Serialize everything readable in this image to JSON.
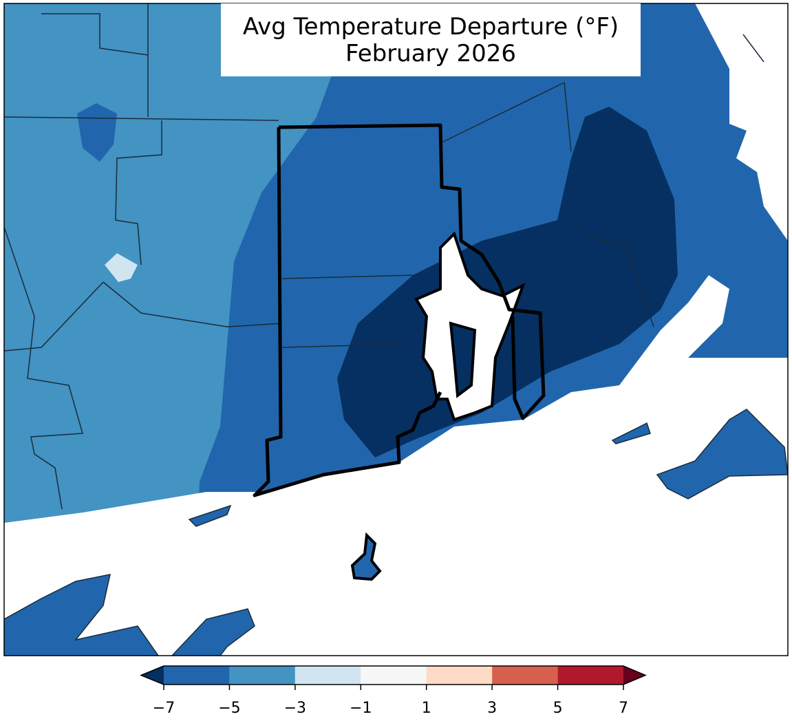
{
  "map": {
    "title": [
      "Avg Temperature Departure (°F)",
      "February 2026"
    ],
    "colorbar": {
      "ticks": [
        {
          "value": -7,
          "label": "−7"
        },
        {
          "value": -5,
          "label": "−5"
        },
        {
          "value": -3,
          "label": "−3"
        },
        {
          "value": -1,
          "label": "−1"
        },
        1,
        3,
        5,
        7
      ],
      "colors": [
        "#2166ac",
        "#4393c3",
        "#d1e5f0",
        "#f7f7f7",
        "#fddbc7",
        "#d6604d",
        "#b2182b"
      ],
      "under_color": "#053061",
      "over_color": "#67001f"
    }
  }
}
